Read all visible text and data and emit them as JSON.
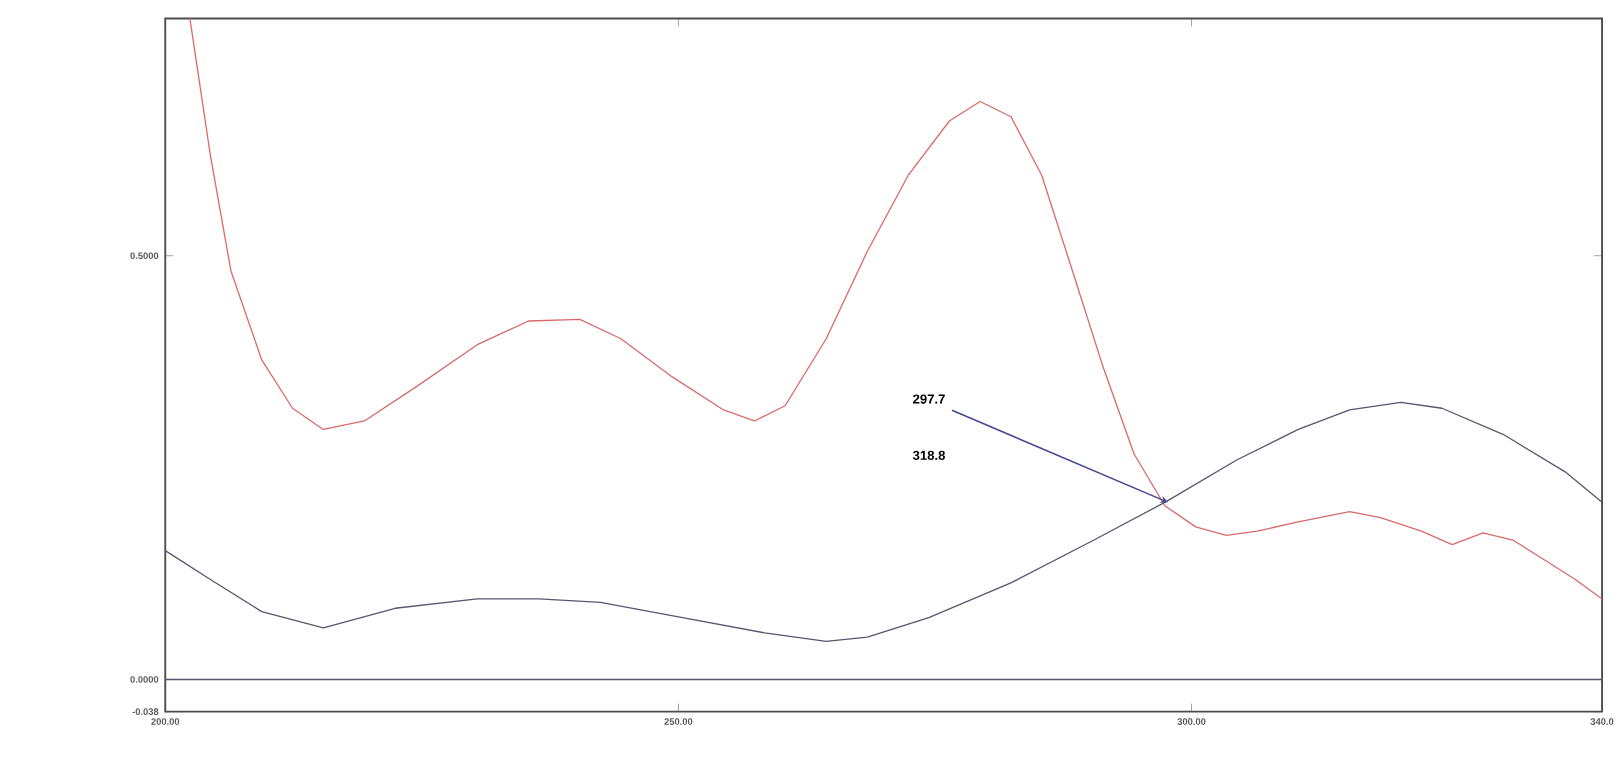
{
  "chart_data": {
    "type": "line",
    "xlim": [
      200,
      340
    ],
    "ylim": [
      -0.038,
      0.78
    ],
    "xticks": [
      {
        "value": 200,
        "label": "200.00"
      },
      {
        "value": 250,
        "label": "250.00"
      },
      {
        "value": 300,
        "label": "300.00"
      },
      {
        "value": 340,
        "label": "340.0"
      }
    ],
    "yticks": [
      {
        "value": -0.038,
        "label": "-0.038"
      },
      {
        "value": 0,
        "label": "0.0000"
      },
      {
        "value": 0.5,
        "label": "0.5000"
      }
    ],
    "series": [
      {
        "color": "#d96a6a",
        "x": [
          202.4,
          204.4,
          206.4,
          209.4,
          212.4,
          215.4,
          219.4,
          224.4,
          230.4,
          235.4,
          240.4,
          244.4,
          249.4,
          254.4,
          257.4,
          260.4,
          264.4,
          268.4,
          272.4,
          276.4,
          279.4,
          282.4,
          285.4,
          288.4,
          291.4,
          294.4,
          297.4,
          300.4,
          303.4,
          306.4,
          310.4,
          315.4,
          318.4,
          322.4,
          325.4,
          328.4,
          331.4,
          334.4,
          337.4,
          340
        ],
        "values": [
          0.78,
          0.618,
          0.482,
          0.377,
          0.32,
          0.295,
          0.305,
          0.345,
          0.395,
          0.423,
          0.425,
          0.402,
          0.357,
          0.318,
          0.305,
          0.323,
          0.402,
          0.505,
          0.595,
          0.659,
          0.682,
          0.664,
          0.595,
          0.482,
          0.368,
          0.266,
          0.205,
          0.18,
          0.17,
          0.175,
          0.186,
          0.198,
          0.191,
          0.175,
          0.159,
          0.173,
          0.164,
          0.141,
          0.118,
          0.095
        ]
      },
      {
        "color": "#56566e",
        "x": [
          200,
          204.4,
          209.4,
          215.4,
          222.4,
          230.4,
          236.4,
          242.4,
          250.4,
          258.4,
          264.4,
          268.4,
          274.4,
          282.4,
          290.4,
          297.4,
          304.4,
          310.4,
          315.4,
          320.4,
          324.4,
          330.4,
          336.4,
          340
        ],
        "values": [
          0.152,
          0.118,
          0.08,
          0.061,
          0.084,
          0.095,
          0.095,
          0.091,
          0.073,
          0.055,
          0.045,
          0.05,
          0.073,
          0.114,
          0.164,
          0.209,
          0.259,
          0.295,
          0.318,
          0.327,
          0.32,
          0.289,
          0.245,
          0.209
        ]
      }
    ],
    "ref_lines": [
      {
        "axis": "y",
        "value": 0,
        "color": "#56566e"
      }
    ],
    "annotations": [
      {
        "text": "297.7",
        "x": 297.7,
        "y": 0.209
      },
      "318.8"
    ],
    "grid": false,
    "marker": "none",
    "line_style": "solid"
  }
}
